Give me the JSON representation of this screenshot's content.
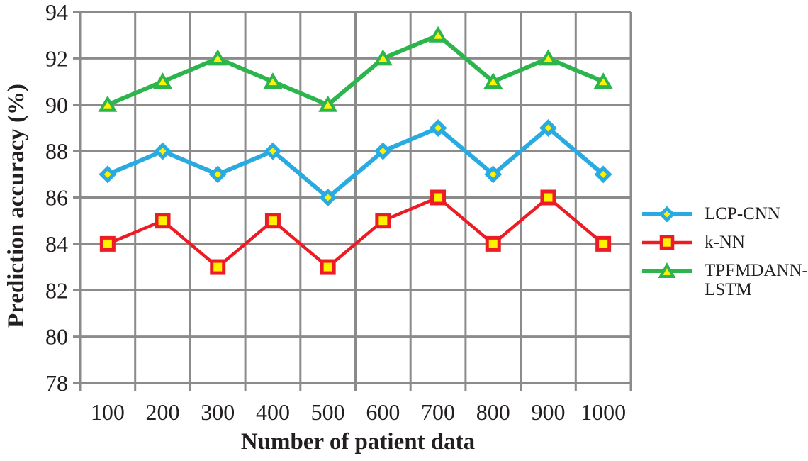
{
  "chart_data": {
    "type": "line",
    "title": "",
    "xlabel": "Number of patient data",
    "ylabel": "Prediction accuracy (%)",
    "categories": [
      "100",
      "200",
      "300",
      "400",
      "500",
      "600",
      "700",
      "800",
      "900",
      "1000"
    ],
    "ylim": [
      78,
      94
    ],
    "yticks": [
      78,
      80,
      82,
      84,
      86,
      88,
      90,
      92,
      94
    ],
    "grid": "both",
    "legend_position": "right",
    "series": [
      {
        "name": "LCP-CNN",
        "marker": "diamond",
        "color": "#29ABE2",
        "marker_inner": "#FFF200",
        "line_width": 6,
        "values": [
          87,
          88,
          87,
          88,
          86,
          88,
          89,
          87,
          89,
          87
        ]
      },
      {
        "name": "k-NN",
        "marker": "square",
        "color": "#ED1C24",
        "marker_inner": "#FFF200",
        "line_width": 4.5,
        "values": [
          84,
          85,
          83,
          85,
          83,
          85,
          86,
          84,
          86,
          84
        ]
      },
      {
        "name": "TPFMDANN-LSTM",
        "marker": "triangle",
        "color": "#2CB54D",
        "marker_inner": "#FFF200",
        "line_width": 6,
        "values": [
          90,
          91,
          92,
          91,
          90,
          92,
          93,
          91,
          92,
          91
        ]
      }
    ]
  },
  "legend": {
    "items": [
      {
        "label": "LCP-CNN"
      },
      {
        "label": "k-NN"
      },
      {
        "label": "TPFMDANN-\nLSTM"
      }
    ]
  },
  "colors": {
    "grid": "#8B8B8B",
    "text": "#231F20",
    "background": "#FFFFFF"
  }
}
